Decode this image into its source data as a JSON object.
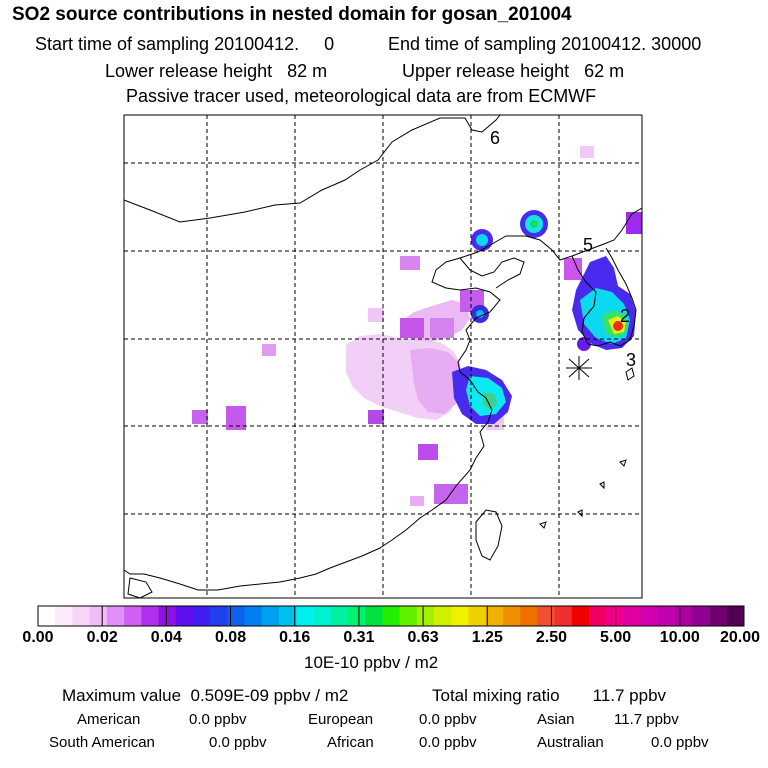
{
  "header": {
    "title": "SO2 source contributions in nested domain for gosan_201004",
    "start_label": "Start time of sampling 20100412.",
    "start_value": "0",
    "end_label": "End time of sampling 20100412. 30000",
    "lower_label": "Lower release height",
    "lower_value": "82 m",
    "upper_label": "Upper release height",
    "upper_value": "62 m",
    "note": "Passive tracer used, meteorological data are from ECMWF"
  },
  "map": {
    "markers": [
      "6",
      "5",
      "2",
      "3"
    ]
  },
  "colorbar": {
    "labels": [
      "0.00",
      "0.02",
      "0.04",
      "0.08",
      "0.16",
      "0.31",
      "0.63",
      "1.25",
      "2.50",
      "5.00",
      "10.00",
      "20.00"
    ],
    "colors": [
      "#ffffff",
      "#fbeafb",
      "#f6d6f7",
      "#f0bdf4",
      "#e090f4",
      "#d060f4",
      "#b030f0",
      "#9010e8",
      "#6010ec",
      "#4020f0",
      "#2040f0",
      "#1060f0",
      "#0080f0",
      "#00a0f0",
      "#00c0f0",
      "#00f0f0",
      "#00f0d0",
      "#00f0a0",
      "#00f070",
      "#00e040",
      "#20f000",
      "#60f000",
      "#a0f000",
      "#d0f000",
      "#f0f000",
      "#f0d000",
      "#f0b000",
      "#f09000",
      "#f07000",
      "#f05030",
      "#f03030",
      "#f00000",
      "#f00060",
      "#f0008a",
      "#e000a0",
      "#d000b0",
      "#c000b0",
      "#b000a0",
      "#900090",
      "#700070",
      "#500050"
    ],
    "unit": "10E-10 ppbv / m2"
  },
  "stats": {
    "max_label": "Maximum value",
    "max_value": "0.509E-09 ppbv / m2",
    "total_label": "Total mixing ratio",
    "total_value": "11.7 ppbv",
    "regions": [
      {
        "name": "American",
        "value": "0.0 ppbv"
      },
      {
        "name": "European",
        "value": "0.0 ppbv"
      },
      {
        "name": "Asian",
        "value": "11.7 ppbv"
      },
      {
        "name": "South American",
        "value": "0.0 ppbv"
      },
      {
        "name": "African",
        "value": "0.0 ppbv"
      },
      {
        "name": "Australian",
        "value": "0.0 ppbv"
      }
    ]
  }
}
